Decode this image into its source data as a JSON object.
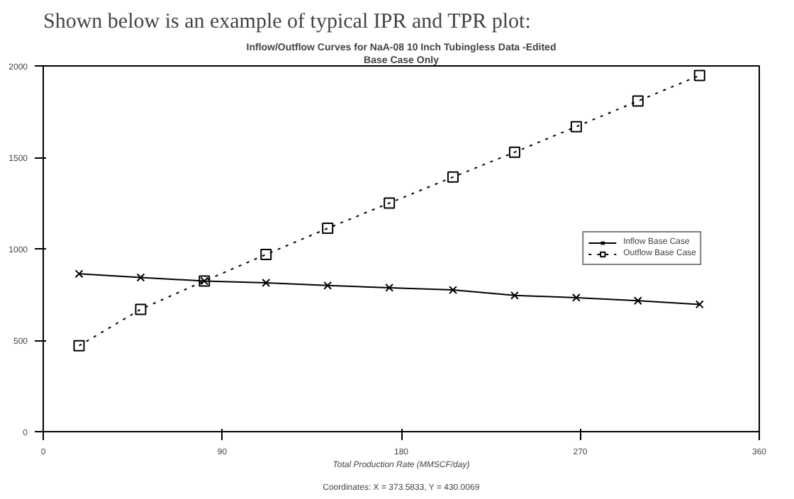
{
  "chart_data": {
    "type": "line",
    "title": "Inflow/Outflow Curves for NaA-08 10 Inch Tubingless Data -Edited",
    "subtitle": "Base Case Only",
    "xlabel": "Total Production Rate (MMSCF/day)",
    "annotations": [
      "Shown below is an example of typical IPR and TPR plot:",
      "Coordinates: X = 373.5833, Y = 430.0069"
    ],
    "x": [
      18,
      49,
      81,
      112,
      143,
      174,
      206,
      237,
      268,
      299,
      330
    ],
    "series": [
      {
        "name": "Inflow Base Case",
        "color": "#000000",
        "marker": "cross",
        "line_style": "solid",
        "values": [
          863,
          843,
          824,
          814,
          799,
          787,
          775,
          745,
          733,
          716,
          696
        ]
      },
      {
        "name": "Outflow Base Case",
        "color": "#000000",
        "marker": "square",
        "line_style": "dotted",
        "values": [
          470,
          669,
          824,
          969,
          1112,
          1250,
          1392,
          1528,
          1668,
          1808,
          1948
        ]
      }
    ],
    "xlim": [
      0,
      360
    ],
    "xticks": [
      0,
      90,
      180,
      270,
      360
    ],
    "ylim": [
      0,
      2000
    ],
    "yticks": [
      0,
      500,
      1000,
      1500,
      2000
    ],
    "grid": false,
    "legend": "right"
  }
}
